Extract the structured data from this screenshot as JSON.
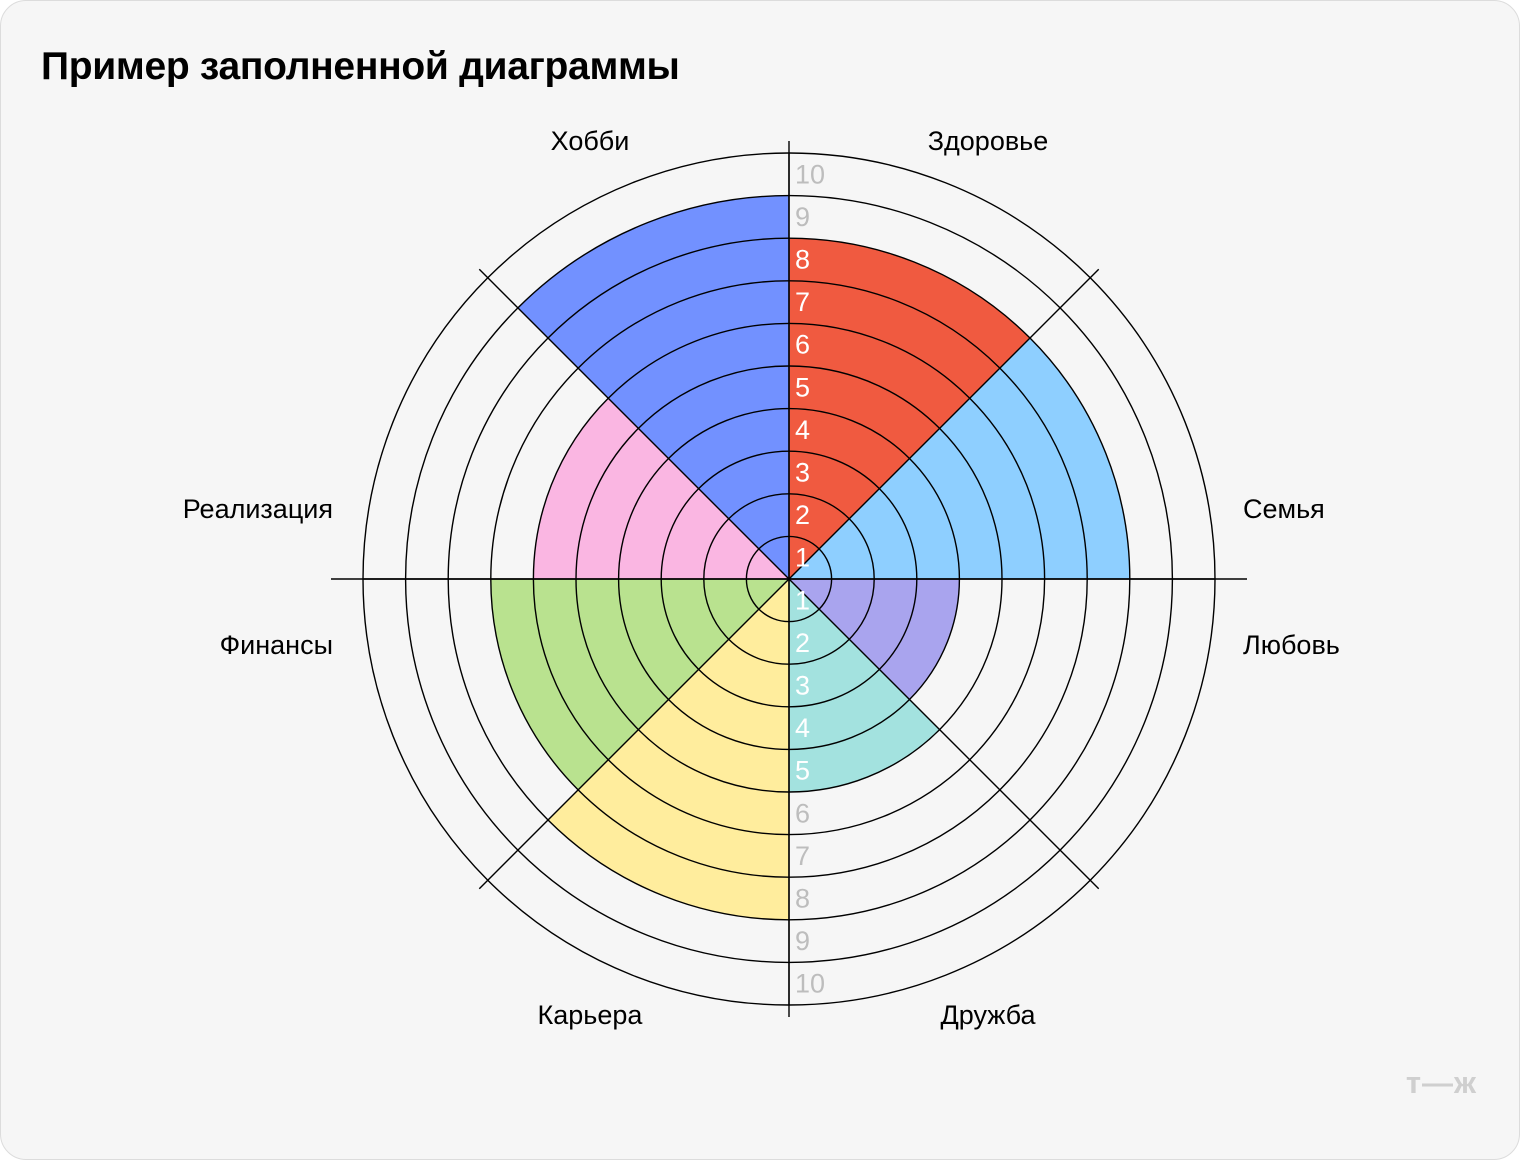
{
  "title": "Пример заполненной диаграммы",
  "logo": "т—ж",
  "chart_data": {
    "type": "polar-area",
    "scale_max": 10,
    "categories": [
      "Здоровье",
      "Семья",
      "Любовь",
      "Дружба",
      "Карьера",
      "Финансы",
      "Реализация",
      "Хобби"
    ],
    "values": [
      8,
      8,
      4,
      5,
      8,
      7,
      6,
      9
    ],
    "colors": [
      "#f05a40",
      "#8ecfff",
      "#a9a4ee",
      "#a3e2df",
      "#ffed9d",
      "#b9e28f",
      "#fab6e2",
      "#7291ff"
    ],
    "scale_labels_top": [
      "1",
      "2",
      "3",
      "4",
      "5",
      "6",
      "7",
      "8",
      "9",
      "10"
    ],
    "scale_labels_bottom": [
      "1",
      "2",
      "3",
      "4",
      "5",
      "6",
      "7",
      "8",
      "9",
      "10"
    ]
  }
}
